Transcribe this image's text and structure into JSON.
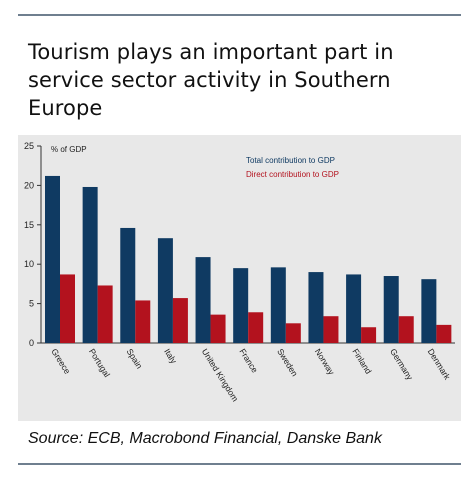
{
  "title": "Tourism plays an important part in service sector activity in Southern Europe",
  "source": "Source: ECB, Macrobond Financial, Danske Bank",
  "chart_data": {
    "type": "bar",
    "ylabel": "% of GDP",
    "ylim": [
      0,
      25
    ],
    "yticks": [
      0,
      5,
      10,
      15,
      20,
      25
    ],
    "grid": false,
    "legend_position": "top-right",
    "categories": [
      "Greece",
      "Portugal",
      "Spain",
      "Italy",
      "United Kingdom",
      "France",
      "Sweden",
      "Norway",
      "Finland",
      "Germany",
      "Denmark"
    ],
    "series": [
      {
        "name": "Total contribution to GDP",
        "color": "#0f3a62",
        "values": [
          21.2,
          19.8,
          14.6,
          13.3,
          10.9,
          9.5,
          9.6,
          9.0,
          8.7,
          8.5,
          8.1
        ]
      },
      {
        "name": "Direct contribution to GDP",
        "color": "#b3121e",
        "values": [
          8.7,
          7.3,
          5.4,
          5.7,
          3.6,
          3.9,
          2.5,
          3.4,
          2.0,
          3.4,
          2.3
        ]
      }
    ]
  }
}
